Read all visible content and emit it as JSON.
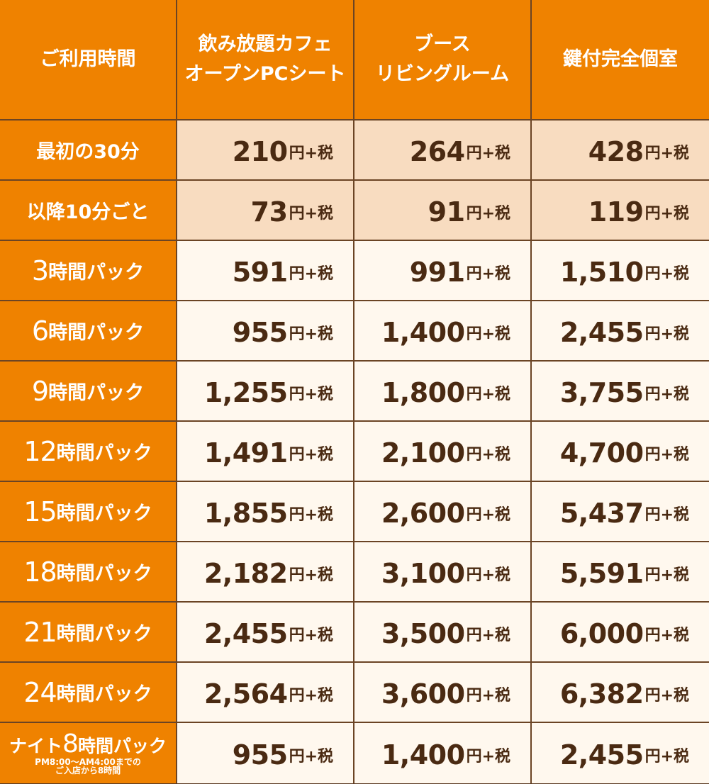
{
  "header": {
    "col1": "ご利用時間",
    "col2_line1": "飲み放題カフェ",
    "col2_line2": "オープンPCシート",
    "col3_line1": "ブース",
    "col3_line2": "リビングルーム",
    "col4": "鍵付完全個室"
  },
  "unit": "円+税",
  "rows": [
    {
      "label": "最初の30分",
      "prices": [
        "210",
        "264",
        "428"
      ]
    },
    {
      "label": "以降10分ごと",
      "prices": [
        "73",
        "91",
        "119"
      ]
    },
    {
      "num": "3",
      "text": "時間パック",
      "prices": [
        "591",
        "991",
        "1,510"
      ]
    },
    {
      "num": "6",
      "text": "時間パック",
      "prices": [
        "955",
        "1,400",
        "2,455"
      ]
    },
    {
      "num": "9",
      "text": "時間パック",
      "prices": [
        "1,255",
        "1,800",
        "3,755"
      ]
    },
    {
      "num": "12",
      "text": "時間パック",
      "prices": [
        "1,491",
        "2,100",
        "4,700"
      ]
    },
    {
      "num": "15",
      "text": "時間パック",
      "prices": [
        "1,855",
        "2,600",
        "5,437"
      ]
    },
    {
      "num": "18",
      "text": "時間パック",
      "prices": [
        "2,182",
        "3,100",
        "5,591"
      ]
    },
    {
      "num": "21",
      "text": "時間パック",
      "prices": [
        "2,455",
        "3,500",
        "6,000"
      ]
    },
    {
      "num": "24",
      "text": "時間パック",
      "prices": [
        "2,564",
        "3,600",
        "6,382"
      ]
    },
    {
      "pre": "ナイト",
      "num": "8",
      "text": "時間パック",
      "note1": "PM8:00～AM4:00までの",
      "note2": "ご入店から8時間",
      "prices": [
        "955",
        "1,400",
        "2,455"
      ]
    }
  ],
  "colors": {
    "header_orange": "#ef8200",
    "tint_row": "#f8dcc0",
    "light_row": "#fff8ee",
    "text_brown": "#4a2a12",
    "border_brown": "#6b4424"
  }
}
